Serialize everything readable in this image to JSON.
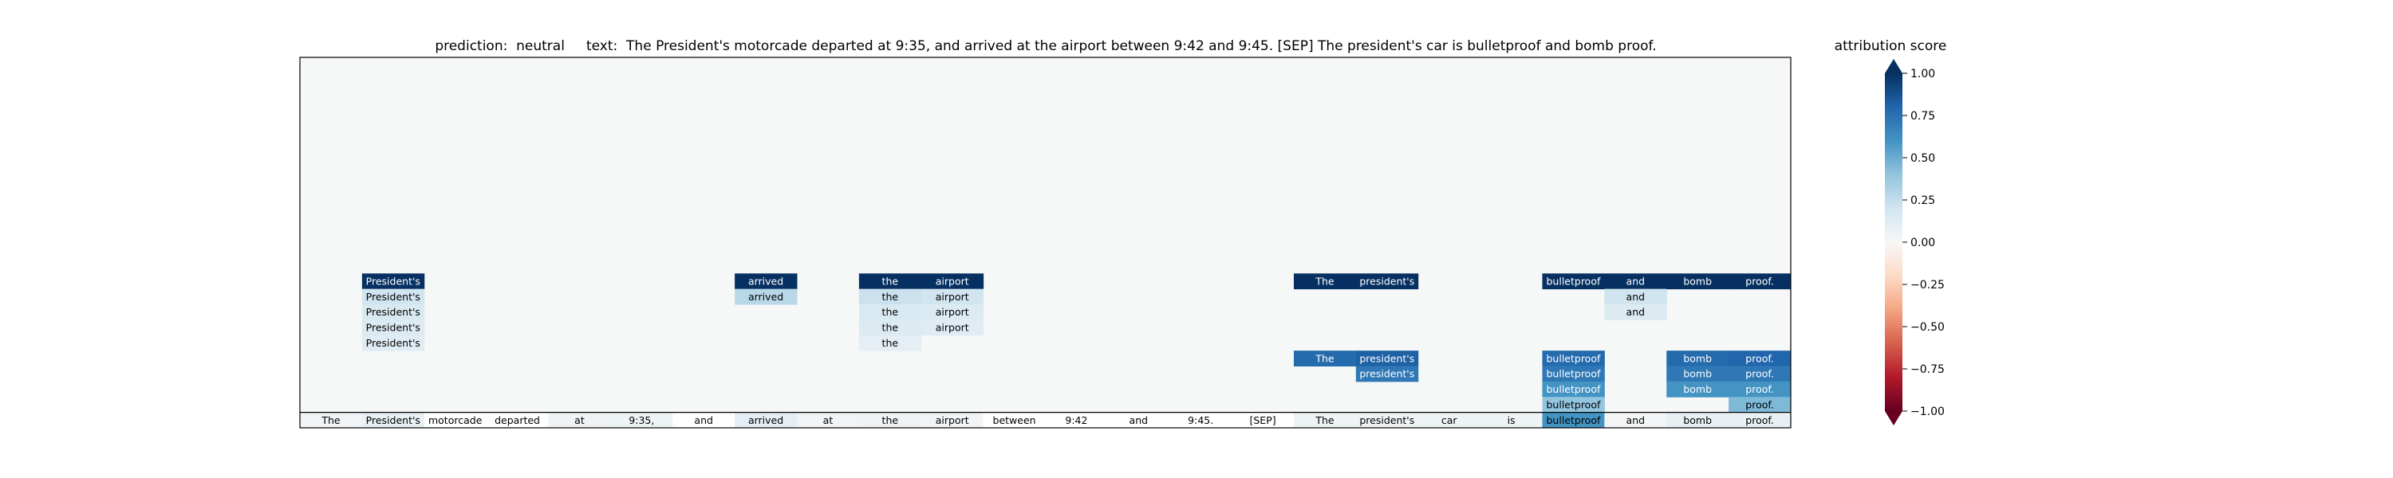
{
  "chart_data": {
    "type": "heatmap",
    "title": "prediction:  neutral     text:  The President's motorcade departed at 9:35, and arrived at the airport between 9:42 and 9:45. [SEP] The president's car is bulletproof and bomb proof.",
    "prediction": "neutral",
    "tokens": [
      "The",
      "President's",
      "motorcade",
      "departed",
      "at",
      "9:35,",
      "and",
      "arrived",
      "at",
      "the",
      "airport",
      "between",
      "9:42",
      "and",
      "9:45.",
      "[SEP]",
      "The",
      "president's",
      "car",
      "is",
      "bulletproof",
      "and",
      "bomb",
      "proof."
    ],
    "token_scores": [
      0.03,
      0.08,
      0.0,
      0.0,
      0.04,
      0.05,
      0.0,
      0.1,
      0.03,
      0.04,
      0.03,
      0.0,
      0.0,
      0.0,
      0.0,
      0.0,
      0.05,
      0.04,
      0.05,
      0.05,
      0.6,
      0.02,
      0.08,
      0.08
    ],
    "rows": 24,
    "cells": [
      {
        "row": 14,
        "col": 1,
        "value": 1.0
      },
      {
        "row": 15,
        "col": 1,
        "value": 0.2
      },
      {
        "row": 16,
        "col": 1,
        "value": 0.16
      },
      {
        "row": 17,
        "col": 1,
        "value": 0.14
      },
      {
        "row": 18,
        "col": 1,
        "value": 0.12
      },
      {
        "row": 14,
        "col": 7,
        "value": 1.0
      },
      {
        "row": 15,
        "col": 7,
        "value": 0.28
      },
      {
        "row": 14,
        "col": 9,
        "value": 1.0
      },
      {
        "row": 15,
        "col": 9,
        "value": 0.22
      },
      {
        "row": 16,
        "col": 9,
        "value": 0.16
      },
      {
        "row": 17,
        "col": 9,
        "value": 0.14
      },
      {
        "row": 18,
        "col": 9,
        "value": 0.1
      },
      {
        "row": 14,
        "col": 10,
        "value": 1.0
      },
      {
        "row": 15,
        "col": 10,
        "value": 0.2
      },
      {
        "row": 16,
        "col": 10,
        "value": 0.14
      },
      {
        "row": 17,
        "col": 10,
        "value": 0.12
      },
      {
        "row": 14,
        "col": 16,
        "value": 1.0
      },
      {
        "row": 19,
        "col": 16,
        "value": 0.78
      },
      {
        "row": 14,
        "col": 17,
        "value": 1.0
      },
      {
        "row": 19,
        "col": 17,
        "value": 0.82
      },
      {
        "row": 20,
        "col": 17,
        "value": 0.72
      },
      {
        "row": 14,
        "col": 20,
        "value": 1.0
      },
      {
        "row": 19,
        "col": 20,
        "value": 0.78
      },
      {
        "row": 20,
        "col": 20,
        "value": 0.72
      },
      {
        "row": 21,
        "col": 20,
        "value": 0.6
      },
      {
        "row": 22,
        "col": 20,
        "value": 0.4
      },
      {
        "row": 14,
        "col": 21,
        "value": 1.0
      },
      {
        "row": 15,
        "col": 21,
        "value": 0.2
      },
      {
        "row": 16,
        "col": 21,
        "value": 0.14
      },
      {
        "row": 14,
        "col": 22,
        "value": 1.0
      },
      {
        "row": 19,
        "col": 22,
        "value": 0.78
      },
      {
        "row": 20,
        "col": 22,
        "value": 0.72
      },
      {
        "row": 21,
        "col": 22,
        "value": 0.6
      },
      {
        "row": 14,
        "col": 23,
        "value": 1.0
      },
      {
        "row": 19,
        "col": 23,
        "value": 0.8
      },
      {
        "row": 20,
        "col": 23,
        "value": 0.72
      },
      {
        "row": 21,
        "col": 23,
        "value": 0.6
      },
      {
        "row": 22,
        "col": 23,
        "value": 0.45
      }
    ],
    "colorbar": {
      "label": "attribution score",
      "min": -1.0,
      "max": 1.0,
      "ticks": [
        1.0,
        0.75,
        0.5,
        0.25,
        0.0,
        -0.25,
        -0.5,
        -0.75,
        -1.0
      ],
      "tick_labels": [
        "1.00",
        "0.75",
        "0.50",
        "0.25",
        "0.00",
        "−0.25",
        "−0.50",
        "−0.75",
        "−1.00"
      ],
      "colormap": "RdBu"
    },
    "background_color": "#f6f7f7"
  }
}
